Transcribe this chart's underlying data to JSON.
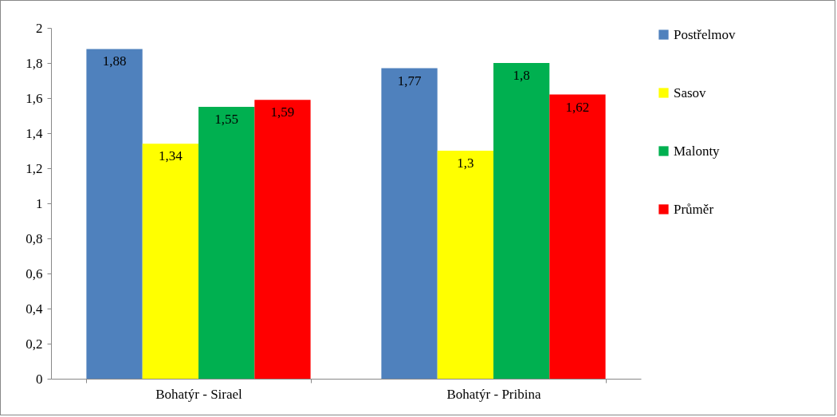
{
  "chart_data": {
    "type": "bar",
    "categories": [
      "Bohatýr - Sirael",
      "Bohatýr - Pribina"
    ],
    "series": [
      {
        "name": "Postřelmov",
        "color": "#4f81bd",
        "values": [
          1.88,
          1.77
        ],
        "value_labels": [
          "1,88",
          "1,77"
        ]
      },
      {
        "name": "Sasov",
        "color": "#ffff00",
        "values": [
          1.34,
          1.3
        ],
        "value_labels": [
          "1,34",
          "1,3"
        ]
      },
      {
        "name": "Malonty",
        "color": "#00b050",
        "values": [
          1.55,
          1.8
        ],
        "value_labels": [
          "1,55",
          "1,8"
        ]
      },
      {
        "name": "Průměr",
        "color": "#ff0000",
        "values": [
          1.59,
          1.62
        ],
        "value_labels": [
          "1,59",
          "1,62"
        ]
      }
    ],
    "ylim": [
      0,
      2
    ],
    "yticks": [
      0,
      {
        "value": 0.2,
        "label": "0,2"
      },
      {
        "value": 0.4,
        "label": "0,4"
      },
      {
        "value": 0.6,
        "label": "0,6"
      },
      {
        "value": 0.8,
        "label": "0,8"
      },
      1,
      {
        "value": 1.2,
        "label": "1,2"
      },
      {
        "value": 1.4,
        "label": "1,4"
      },
      {
        "value": 1.6,
        "label": "1,6"
      },
      {
        "value": 1.8,
        "label": "1,8"
      },
      2
    ],
    "grid": false,
    "legend": "right"
  }
}
